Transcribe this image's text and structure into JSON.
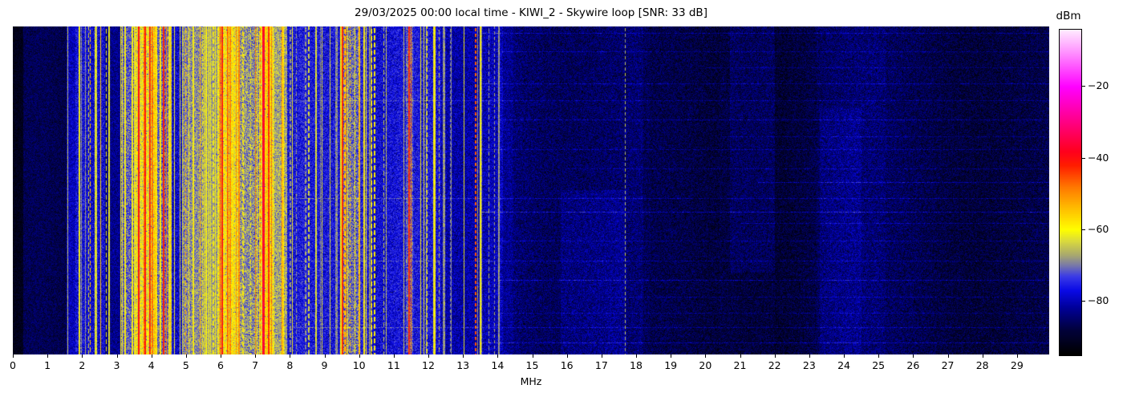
{
  "chart_data": {
    "type": "heatmap",
    "title": "29/03/2025 00:00 local time - KIWI_2 - Skywire loop [SNR: 33 dB]",
    "xlabel": "MHz",
    "x_ticks": [
      0,
      1,
      2,
      3,
      4,
      5,
      6,
      7,
      8,
      9,
      10,
      11,
      12,
      13,
      14,
      15,
      16,
      17,
      18,
      19,
      20,
      21,
      22,
      23,
      24,
      25,
      26,
      27,
      28,
      29
    ],
    "x_range_mhz": [
      0,
      29.93
    ],
    "y_axis": "time (unlabeled waterfall rows)",
    "legend_position": "right",
    "grid": false,
    "colorbar": {
      "label": "dBm",
      "range_dbm": [
        -95,
        -4
      ],
      "ticks": [
        {
          "value": -20,
          "label": "−20"
        },
        {
          "value": -40,
          "label": "−40"
        },
        {
          "value": -60,
          "label": "−60"
        },
        {
          "value": -80,
          "label": "−80"
        }
      ]
    },
    "colormap_dbm_rgb": [
      [
        -95,
        0,
        0,
        0
      ],
      [
        -88,
        2,
        2,
        60
      ],
      [
        -82,
        0,
        0,
        150
      ],
      [
        -77,
        10,
        10,
        230
      ],
      [
        -73,
        60,
        60,
        230
      ],
      [
        -70,
        120,
        120,
        170
      ],
      [
        -67,
        170,
        170,
        110
      ],
      [
        -63,
        220,
        220,
        60
      ],
      [
        -60,
        255,
        255,
        0
      ],
      [
        -54,
        255,
        190,
        0
      ],
      [
        -48,
        255,
        120,
        0
      ],
      [
        -42,
        255,
        30,
        0
      ],
      [
        -38,
        255,
        0,
        30
      ],
      [
        -30,
        255,
        0,
        130
      ],
      [
        -20,
        255,
        0,
        255
      ],
      [
        -10,
        255,
        150,
        255
      ],
      [
        -4,
        255,
        235,
        255
      ]
    ],
    "seed": 20250329,
    "bands": [
      {
        "f0": 0.0,
        "f1": 0.3,
        "base": -92,
        "var": 2.5,
        "density": 0,
        "palette": []
      },
      {
        "f0": 0.3,
        "f1": 1.55,
        "base": -87,
        "var": 3.5,
        "density": 0.03,
        "palette": [
          [
            -78,
            1
          ]
        ]
      },
      {
        "f0": 1.55,
        "f1": 1.8,
        "base": -79,
        "var": 4,
        "density": 0.5,
        "palette": [
          [
            -73,
            0.6
          ],
          [
            -65,
            0.4
          ]
        ]
      },
      {
        "f0": 1.8,
        "f1": 2.15,
        "base": -76,
        "var": 5,
        "density": 0.6,
        "palette": [
          [
            -61,
            0.5
          ],
          [
            -68,
            0.3
          ],
          [
            -52,
            0.2
          ]
        ]
      },
      {
        "f0": 2.15,
        "f1": 2.65,
        "base": -77,
        "var": 5,
        "density": 0.5,
        "palette": [
          [
            -63,
            0.5
          ],
          [
            -70,
            0.3
          ],
          [
            -55,
            0.2
          ]
        ]
      },
      {
        "f0": 2.65,
        "f1": 3.1,
        "base": -83,
        "var": 4,
        "density": 0.3,
        "palette": [
          [
            -62,
            0.6
          ],
          [
            -72,
            0.4
          ]
        ]
      },
      {
        "f0": 3.1,
        "f1": 3.5,
        "base": -72,
        "var": 6,
        "density": 0.7,
        "palette": [
          [
            -60,
            0.6
          ],
          [
            -52,
            0.4
          ]
        ]
      },
      {
        "f0": 3.5,
        "f1": 4.1,
        "base": -62,
        "var": 6,
        "density": 0.85,
        "palette": [
          [
            -48,
            0.45
          ],
          [
            -55,
            0.3
          ],
          [
            -40,
            0.25
          ]
        ]
      },
      {
        "f0": 4.1,
        "f1": 4.5,
        "base": -70,
        "var": 6,
        "density": 0.6,
        "palette": [
          [
            -58,
            0.6
          ],
          [
            -48,
            0.4
          ]
        ]
      },
      {
        "f0": 4.5,
        "f1": 4.9,
        "base": -77,
        "var": 5,
        "density": 0.35,
        "palette": [
          [
            -63,
            0.7
          ],
          [
            -55,
            0.3
          ]
        ]
      },
      {
        "f0": 4.9,
        "f1": 5.5,
        "base": -68,
        "var": 5,
        "density": 0.7,
        "palette": [
          [
            -60,
            0.7
          ],
          [
            -53,
            0.3
          ]
        ]
      },
      {
        "f0": 5.5,
        "f1": 5.9,
        "base": -68,
        "var": 3.5,
        "density": 0.6,
        "palette": [
          [
            -68,
            0.5
          ],
          [
            -61,
            0.5
          ]
        ]
      },
      {
        "f0": 5.9,
        "f1": 6.5,
        "base": -62,
        "var": 6,
        "density": 0.8,
        "palette": [
          [
            -50,
            0.5
          ],
          [
            -43,
            0.3
          ],
          [
            -58,
            0.2
          ]
        ]
      },
      {
        "f0": 6.5,
        "f1": 7.1,
        "base": -68,
        "var": 6,
        "density": 0.65,
        "palette": [
          [
            -59,
            0.6
          ],
          [
            -50,
            0.4
          ]
        ]
      },
      {
        "f0": 7.1,
        "f1": 7.55,
        "base": -60,
        "var": 6,
        "density": 0.85,
        "palette": [
          [
            -40,
            0.5
          ],
          [
            -48,
            0.3
          ],
          [
            -55,
            0.2
          ]
        ]
      },
      {
        "f0": 7.55,
        "f1": 7.9,
        "base": -66,
        "var": 5,
        "density": 0.7,
        "palette": [
          [
            -57,
            0.6
          ],
          [
            -50,
            0.4
          ]
        ]
      },
      {
        "f0": 7.9,
        "f1": 8.5,
        "base": -76,
        "var": 5,
        "density": 0.4,
        "palette": [
          [
            -61,
            0.5
          ],
          [
            -68,
            0.5
          ]
        ]
      },
      {
        "f0": 8.5,
        "f1": 9.45,
        "base": -77,
        "var": 5,
        "density": 0.35,
        "palette": [
          [
            -63,
            0.5
          ],
          [
            -69,
            0.5
          ]
        ]
      },
      {
        "f0": 9.45,
        "f1": 10.0,
        "base": -70,
        "var": 6,
        "density": 0.6,
        "palette": [
          [
            -54,
            0.5
          ],
          [
            -60,
            0.5
          ]
        ]
      },
      {
        "f0": 10.0,
        "f1": 10.25,
        "base": -74,
        "var": 5,
        "density": 0.4,
        "palette": [
          [
            -60,
            1
          ]
        ]
      },
      {
        "f0": 10.25,
        "f1": 11.35,
        "base": -77,
        "var": 5,
        "density": 0.3,
        "palette": [
          [
            -65,
            0.6
          ],
          [
            -59,
            0.4
          ]
        ]
      },
      {
        "f0": 11.35,
        "f1": 11.55,
        "base": -72,
        "var": 5,
        "density": 0.6,
        "palette": [
          [
            -47,
            0.5
          ],
          [
            -58,
            0.5
          ]
        ]
      },
      {
        "f0": 11.55,
        "f1": 12.35,
        "base": -77,
        "var": 5,
        "density": 0.4,
        "palette": [
          [
            -61,
            0.6
          ],
          [
            -66,
            0.4
          ]
        ]
      },
      {
        "f0": 12.35,
        "f1": 13.3,
        "base": -80,
        "var": 4.5,
        "density": 0.3,
        "palette": [
          [
            -68,
            0.7
          ],
          [
            -62,
            0.3
          ]
        ]
      },
      {
        "f0": 13.3,
        "f1": 14.15,
        "base": -80,
        "var": 4.5,
        "density": 0.35,
        "palette": [
          [
            -68,
            0.8
          ],
          [
            -61,
            0.2
          ]
        ]
      },
      {
        "f0": 14.15,
        "f1": 14.45,
        "base": -83,
        "var": 4,
        "density": 0.12,
        "palette": [
          [
            -71,
            1
          ]
        ]
      },
      {
        "f0": 14.45,
        "f1": 29.93,
        "base": -86.5,
        "var": 4.5,
        "density": 0,
        "palette": []
      }
    ],
    "lines": [
      {
        "f": 3.62,
        "w": 2,
        "level": -40,
        "dashed": false
      },
      {
        "f": 3.79,
        "w": 2,
        "level": -43,
        "dashed": false
      },
      {
        "f": 3.96,
        "w": 1,
        "level": -45,
        "dashed": false
      },
      {
        "f": 4.33,
        "w": 2,
        "level": -42,
        "dashed": false
      },
      {
        "f": 6.02,
        "w": 2,
        "level": -41,
        "dashed": false
      },
      {
        "f": 6.18,
        "w": 1,
        "level": -46,
        "dashed": false
      },
      {
        "f": 7.2,
        "w": 3,
        "level": -37,
        "dashed": false
      },
      {
        "f": 7.36,
        "w": 2,
        "level": -43,
        "dashed": false
      },
      {
        "f": 9.5,
        "w": 2,
        "level": -42,
        "dashed": false
      },
      {
        "f": 9.62,
        "w": 1,
        "level": -50,
        "dashed": false
      },
      {
        "f": 10.12,
        "w": 1,
        "level": -58,
        "dashed": false
      },
      {
        "f": 11.42,
        "w": 2,
        "level": -43,
        "dashed": false
      },
      {
        "f": 12.18,
        "w": 1,
        "level": -58,
        "dashed": false
      },
      {
        "f": 12.42,
        "w": 1,
        "level": -69,
        "dashed": false
      },
      {
        "f": 12.62,
        "w": 1,
        "level": -70,
        "dashed": true
      },
      {
        "f": 13.35,
        "w": 2,
        "level": -46,
        "dashed": true
      },
      {
        "f": 13.52,
        "w": 1,
        "level": -69,
        "dashed": false
      },
      {
        "f": 13.9,
        "w": 1,
        "level": -68,
        "dashed": true
      },
      {
        "f": 14.02,
        "w": 2,
        "level": -68,
        "dashed": false
      },
      {
        "f": 17.68,
        "w": 1,
        "level": -66,
        "dashed": true
      }
    ],
    "hstreaks": [
      {
        "y": 0.02,
        "f0": 13.5,
        "f1": 30,
        "boost": 5
      },
      {
        "y": 0.075,
        "f0": 14,
        "f1": 30,
        "boost": 4
      },
      {
        "y": 0.125,
        "f0": 20,
        "f1": 30,
        "boost": 4
      },
      {
        "y": 0.175,
        "f0": 13.5,
        "f1": 30,
        "boost": 5
      },
      {
        "y": 0.225,
        "f0": 8,
        "f1": 30,
        "boost": 4
      },
      {
        "y": 0.285,
        "f0": 14,
        "f1": 30,
        "boost": 5
      },
      {
        "y": 0.335,
        "f0": 20.5,
        "f1": 30,
        "boost": 4
      },
      {
        "y": 0.375,
        "f0": 13.5,
        "f1": 30,
        "boost": 4
      },
      {
        "y": 0.435,
        "f0": 16,
        "f1": 30,
        "boost": 4
      },
      {
        "y": 0.475,
        "f0": 21.5,
        "f1": 30,
        "boost": 6
      },
      {
        "y": 0.525,
        "f0": 8,
        "f1": 30,
        "boost": 5
      },
      {
        "y": 0.565,
        "f0": 13.5,
        "f1": 30,
        "boost": 7
      },
      {
        "y": 0.6,
        "f0": 21,
        "f1": 30,
        "boost": 5
      },
      {
        "y": 0.655,
        "f0": 14,
        "f1": 30,
        "boost": 4
      },
      {
        "y": 0.715,
        "f0": 8,
        "f1": 30,
        "boost": 4
      },
      {
        "y": 0.775,
        "f0": 14,
        "f1": 30,
        "boost": 6
      },
      {
        "y": 0.825,
        "f0": 17,
        "f1": 30,
        "boost": 4
      },
      {
        "y": 0.875,
        "f0": 14,
        "f1": 30,
        "boost": 4
      },
      {
        "y": 0.92,
        "f0": 8,
        "f1": 30,
        "boost": 5
      },
      {
        "y": 0.965,
        "f0": 13.5,
        "f1": 30,
        "boost": 6
      }
    ],
    "blobs": [
      {
        "f0": 14.45,
        "f1": 18.2,
        "y0": 0,
        "y1": 1,
        "boost": 2
      },
      {
        "f0": 15.8,
        "f1": 17.7,
        "y0": 0.5,
        "y1": 1,
        "boost": 2.5
      },
      {
        "f0": 20.7,
        "f1": 22.0,
        "y0": 0,
        "y1": 0.75,
        "boost": 2.5
      },
      {
        "f0": 23.3,
        "f1": 24.5,
        "y0": 0.25,
        "y1": 1,
        "boost": 2
      },
      {
        "f0": 18.4,
        "f1": 20.4,
        "y0": 0,
        "y1": 1,
        "boost": -0.8
      },
      {
        "f0": 22.0,
        "f1": 23.2,
        "y0": 0,
        "y1": 1,
        "boost": -1.2
      },
      {
        "f0": 25.2,
        "f1": 29.93,
        "y0": 0,
        "y1": 1,
        "boost": -1.2
      }
    ]
  }
}
